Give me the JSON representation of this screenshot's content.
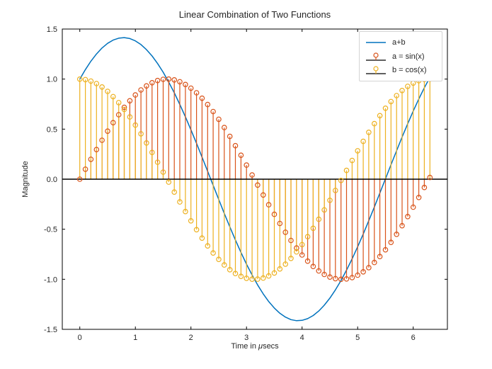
{
  "figure": {
    "title": "Linear Combination of Two Functions",
    "ylabel": "Magnitude",
    "xlabel_parts": {
      "pre": "Time in ",
      "mu": "μ",
      "post": "secs"
    },
    "background": "#ffffff",
    "text_color": "#262626",
    "axis_color": "#000000"
  },
  "legend": {
    "location": "upper right",
    "border_color": "#d4d4d4",
    "entries": [
      {
        "label": "a+b",
        "type": "line",
        "color": "#0072BD"
      },
      {
        "label": "a = sin(x)",
        "type": "stem",
        "color": "#D95319"
      },
      {
        "label": "b = cos(x)",
        "type": "stem",
        "color": "#EDB120"
      }
    ]
  },
  "chart_data": {
    "type": "line+stem",
    "title": "Linear Combination of Two Functions",
    "xlabel": "Time in μsecs",
    "ylabel": "Magnitude",
    "xlim": [
      -0.315,
      6.615
    ],
    "ylim": [
      -1.5,
      1.5
    ],
    "grid": false,
    "tick_direction": "in",
    "box": true,
    "x_ticks": [
      0,
      1,
      2,
      3,
      4,
      5,
      6
    ],
    "x_tick_labels": [
      "0",
      "1",
      "2",
      "3",
      "4",
      "5",
      "6"
    ],
    "y_ticks": [
      -1.5,
      -1.0,
      -0.5,
      0.0,
      0.5,
      1.0,
      1.5
    ],
    "y_tick_labels": [
      "-1.5",
      "-1.0",
      "-0.5",
      "0.0",
      "0.5",
      "1.0",
      "1.5"
    ],
    "baseline": {
      "y": 0,
      "color": "#000000"
    },
    "x": [
      0,
      0.1,
      0.2,
      0.3,
      0.4,
      0.5,
      0.6,
      0.7,
      0.8,
      0.9,
      1,
      1.1,
      1.2,
      1.3,
      1.4,
      1.5,
      1.6,
      1.7,
      1.8,
      1.9,
      2,
      2.1,
      2.2,
      2.3,
      2.4,
      2.5,
      2.6,
      2.7,
      2.8,
      2.9,
      3,
      3.1,
      3.2,
      3.3,
      3.4,
      3.5,
      3.6,
      3.7,
      3.8,
      3.9,
      4,
      4.1,
      4.2,
      4.3,
      4.4,
      4.5,
      4.6,
      4.7,
      4.8,
      4.9,
      5,
      5.1,
      5.2,
      5.3,
      5.4,
      5.5,
      5.6,
      5.7,
      5.8,
      5.9,
      6,
      6.1,
      6.2,
      6.3
    ],
    "series": [
      {
        "name": "a+b",
        "type": "line",
        "color": "#0072BD",
        "linewidth": 1.5,
        "values": [
          1.0,
          1.0948,
          1.1788,
          1.2508,
          1.3105,
          1.357,
          1.3899,
          1.409,
          1.4141,
          1.4049,
          1.3818,
          1.3448,
          1.2944,
          1.2311,
          1.1554,
          1.0682,
          0.9704,
          0.8629,
          0.7466,
          0.623,
          0.4932,
          0.3584,
          0.22,
          0.0794,
          -0.0619,
          -0.2026,
          -0.3414,
          -0.4767,
          -0.6072,
          -0.7318,
          -0.8489,
          -0.9575,
          -1.0567,
          -1.1452,
          -1.2223,
          -1.2873,
          -1.3393,
          -1.3779,
          -1.4029,
          -1.4137,
          -1.4104,
          -1.3931,
          -1.3619,
          -1.317,
          -1.2589,
          -1.1883,
          -1.1059,
          -1.0123,
          -0.9087,
          -0.796,
          -0.6752,
          -0.5478,
          -0.415,
          -0.2779,
          -0.1381,
          0.0032,
          0.1443,
          0.284,
          0.4209,
          0.5536,
          0.6808,
          0.8011,
          0.9134,
          1.0167
        ]
      },
      {
        "name": "a = sin(x)",
        "type": "stem",
        "color": "#D95319",
        "marker": "o",
        "marker_fill": "none",
        "values": [
          0.0,
          0.0998,
          0.1987,
          0.2955,
          0.3894,
          0.4794,
          0.5646,
          0.6442,
          0.7174,
          0.7833,
          0.8415,
          0.8912,
          0.932,
          0.9636,
          0.9854,
          0.9975,
          0.9996,
          0.9917,
          0.9738,
          0.9463,
          0.9093,
          0.8632,
          0.8085,
          0.7457,
          0.6755,
          0.5985,
          0.5155,
          0.4274,
          0.335,
          0.2392,
          0.1411,
          0.0416,
          -0.0584,
          -0.1577,
          -0.2555,
          -0.3508,
          -0.4425,
          -0.5298,
          -0.6119,
          -0.6878,
          -0.7568,
          -0.8183,
          -0.8716,
          -0.9162,
          -0.9516,
          -0.9775,
          -0.9937,
          -0.9999,
          -0.9962,
          -0.9825,
          -0.9589,
          -0.9258,
          -0.8835,
          -0.8323,
          -0.7728,
          -0.7055,
          -0.6313,
          -0.5507,
          -0.4646,
          -0.3739,
          -0.2794,
          -0.1822,
          -0.0831,
          0.0168
        ]
      },
      {
        "name": "b = cos(x)",
        "type": "stem",
        "color": "#EDB120",
        "marker": "o",
        "marker_fill": "none",
        "values": [
          1.0,
          0.995,
          0.9801,
          0.9553,
          0.9211,
          0.8776,
          0.8253,
          0.7648,
          0.6967,
          0.6216,
          0.5403,
          0.4536,
          0.3624,
          0.2675,
          0.17,
          0.0707,
          -0.0292,
          -0.1288,
          -0.2272,
          -0.3233,
          -0.4161,
          -0.5048,
          -0.5885,
          -0.6663,
          -0.7374,
          -0.8011,
          -0.8569,
          -0.9041,
          -0.9422,
          -0.971,
          -0.99,
          -0.9991,
          -0.9983,
          -0.9875,
          -0.9668,
          -0.9365,
          -0.8968,
          -0.8481,
          -0.791,
          -0.7259,
          -0.6536,
          -0.5748,
          -0.4903,
          -0.4008,
          -0.3073,
          -0.2108,
          -0.1122,
          -0.0124,
          0.0875,
          0.1865,
          0.2837,
          0.378,
          0.4685,
          0.5544,
          0.6347,
          0.7087,
          0.7756,
          0.8347,
          0.8855,
          0.9275,
          0.9602,
          0.9833,
          0.9965,
          0.9999
        ]
      }
    ]
  }
}
